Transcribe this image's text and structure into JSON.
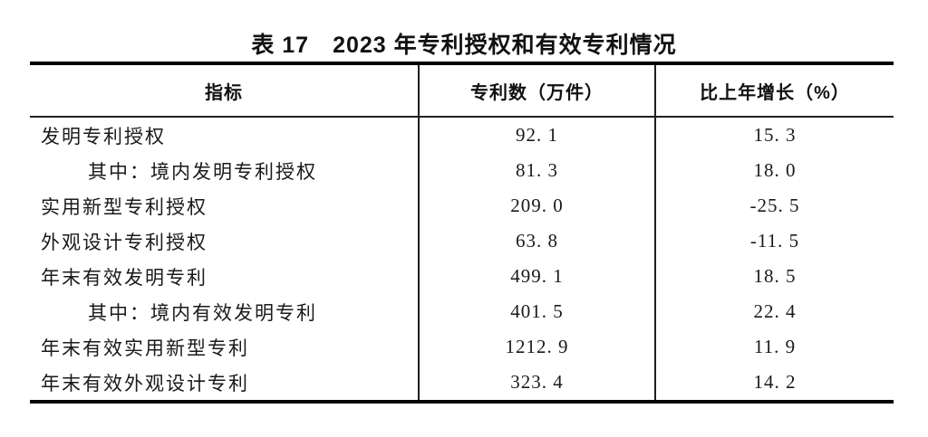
{
  "page": {
    "background": "#ffffff",
    "text_color": "#1a1a1a",
    "rule_color": "#000000"
  },
  "table": {
    "title": "表 17　2023 年专利授权和有效专利情况",
    "header": {
      "indicator": "指标",
      "patents": "专利数（万件）",
      "growth": "比上年增长（%）"
    },
    "rows": [
      {
        "indicator": "发明专利授权",
        "patents": "92. 1",
        "growth": "15. 3"
      },
      {
        "indicator": "其中：境内发明专利授权",
        "patents": "81. 3",
        "growth": "18. 0"
      },
      {
        "indicator": "实用新型专利授权",
        "patents": "209. 0",
        "growth": "-25. 5"
      },
      {
        "indicator": "外观设计专利授权",
        "patents": "63. 8",
        "growth": "-11. 5"
      },
      {
        "indicator": "年末有效发明专利",
        "patents": "499. 1",
        "growth": "18. 5"
      },
      {
        "indicator": "其中：境内有效发明专利",
        "patents": "401. 5",
        "growth": "22. 4"
      },
      {
        "indicator": "年末有效实用新型专利",
        "patents": "1212. 9",
        "growth": "11. 9"
      },
      {
        "indicator": "年末有效外观设计专利",
        "patents": "323. 4",
        "growth": "14. 2"
      }
    ]
  },
  "chart_data": {
    "type": "table",
    "title": "表17 2023年专利授权和有效专利情况",
    "columns": [
      "指标",
      "专利数（万件）",
      "比上年增长（%）"
    ],
    "rows": [
      [
        "发明专利授权",
        92.1,
        15.3
      ],
      [
        "其中：境内发明专利授权",
        81.3,
        18.0
      ],
      [
        "实用新型专利授权",
        209.0,
        -25.5
      ],
      [
        "外观设计专利授权",
        63.8,
        -11.5
      ],
      [
        "年末有效发明专利",
        499.1,
        18.5
      ],
      [
        "其中：境内有效发明专利",
        401.5,
        22.4
      ],
      [
        "年末有效实用新型专利",
        1212.9,
        11.9
      ],
      [
        "年末有效外观设计专利",
        323.4,
        14.2
      ]
    ]
  }
}
